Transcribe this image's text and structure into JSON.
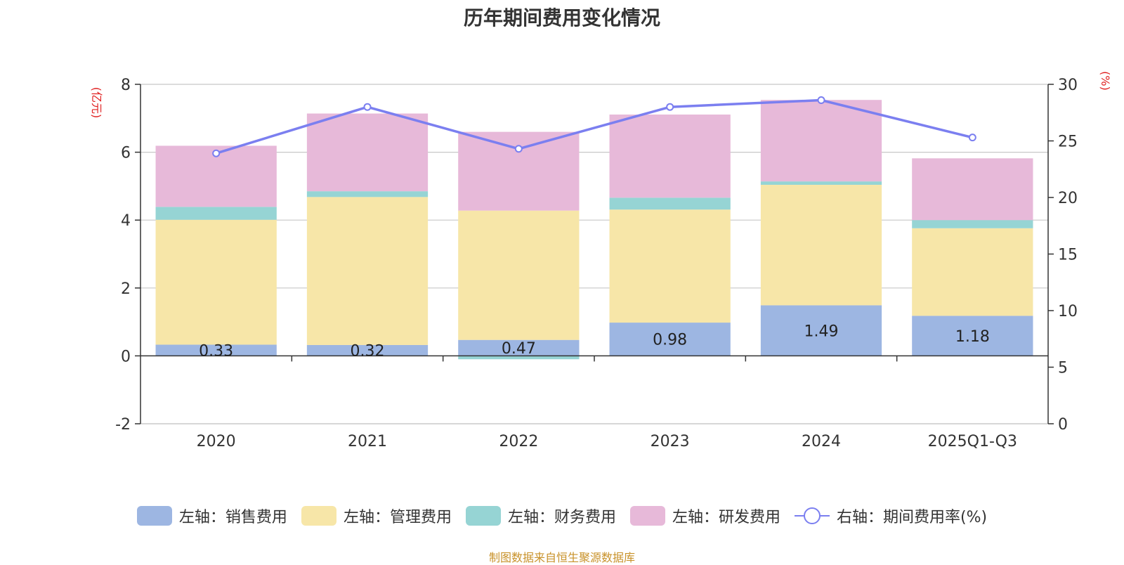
{
  "chart_data": {
    "type": "bar",
    "title": "历年期间费用变化情况",
    "categories": [
      "2020",
      "2021",
      "2022",
      "2023",
      "2024",
      "2025Q1-Q3"
    ],
    "series": [
      {
        "name": "左轴：销售费用",
        "axis": "left",
        "color": "#9db6e2",
        "values": [
          0.33,
          0.32,
          0.47,
          0.98,
          1.49,
          1.18
        ],
        "labels": [
          "0.33",
          "0.32",
          "0.47",
          "0.98",
          "1.49",
          "1.18"
        ]
      },
      {
        "name": "左轴：管理费用",
        "axis": "left",
        "color": "#f7e6a8",
        "values": [
          3.68,
          4.36,
          3.81,
          3.33,
          3.55,
          2.58
        ]
      },
      {
        "name": "左轴：财务费用",
        "axis": "left",
        "color": "#96d4d4",
        "values": [
          0.38,
          0.17,
          -0.1,
          0.35,
          0.1,
          0.24
        ]
      },
      {
        "name": "左轴：研发费用",
        "axis": "left",
        "color": "#e7b9d9",
        "values": [
          1.8,
          2.29,
          2.32,
          2.45,
          2.4,
          1.82
        ]
      },
      {
        "name": "右轴：期间费用率(%)",
        "axis": "right",
        "type": "line",
        "color": "#7b7ff0",
        "values": [
          23.9,
          28.0,
          24.3,
          28.0,
          28.6,
          25.3
        ]
      }
    ],
    "left_axis": {
      "label": "(亿元)",
      "ylim": [
        -2,
        8
      ],
      "ticks": [
        -2,
        0,
        2,
        4,
        6,
        8
      ]
    },
    "right_axis": {
      "label": "(%)",
      "ylim": [
        0,
        30
      ],
      "ticks": [
        0,
        5,
        10,
        15,
        20,
        25,
        30
      ]
    },
    "grid": true,
    "legend_position": "bottom"
  },
  "source_note": "制图数据来自恒生聚源数据库"
}
